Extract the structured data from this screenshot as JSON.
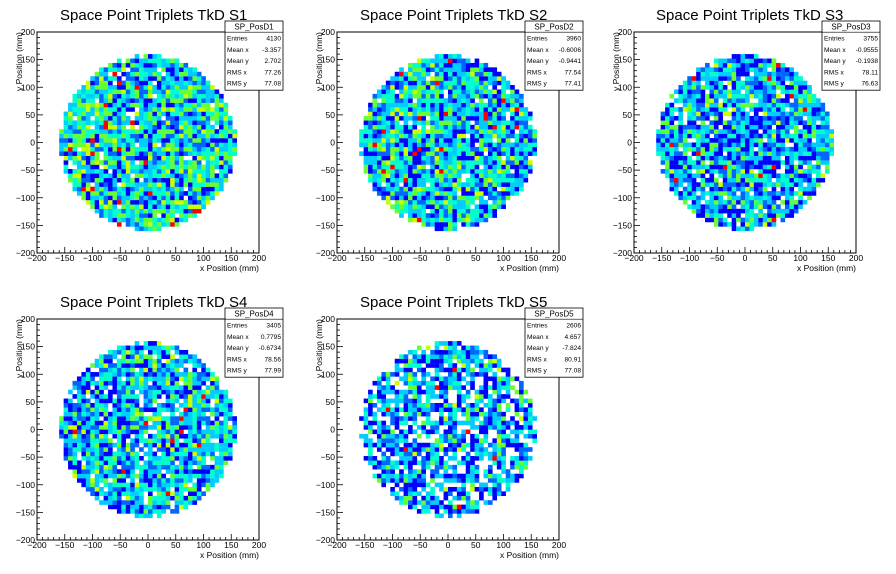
{
  "chart_data": [
    {
      "type": "heatmap",
      "title": "Space Point Triplets TkD S1",
      "xlabel": "x Position (mm)",
      "ylabel": "y Position (mm)",
      "xlim": [
        -200,
        200
      ],
      "ylim": [
        -200,
        200
      ],
      "xticks": [
        "−200",
        "−150",
        "−100",
        "−50",
        "0",
        "50",
        "100",
        "150",
        "200"
      ],
      "yticks": [
        "−200",
        "−150",
        "−100",
        "−50",
        "0",
        "50",
        "100",
        "150",
        "200"
      ],
      "bin_width": 8,
      "active_radius": 160,
      "palette": [
        "#0000ff",
        "#0066ff",
        "#00ccff",
        "#00ffcc",
        "#66ff33",
        "#ccff00",
        "#ff0000"
      ],
      "stats": {
        "name": "SP_PosD1",
        "rows": [
          {
            "label": "Entries",
            "value": "4130"
          },
          {
            "label": "Mean x",
            "value": "-3.357"
          },
          {
            "label": "Mean y",
            "value": "2.702"
          },
          {
            "label": "RMS x",
            "value": "77.26"
          },
          {
            "label": "RMS y",
            "value": "77.08"
          }
        ]
      },
      "density": 0.96,
      "weights": [
        14,
        12,
        22,
        24,
        18,
        8,
        2
      ]
    },
    {
      "type": "heatmap",
      "title": "Space Point Triplets TkD S2",
      "xlabel": "x Position (mm)",
      "ylabel": "y Position (mm)",
      "xlim": [
        -200,
        200
      ],
      "ylim": [
        -200,
        200
      ],
      "xticks": [
        "−200",
        "−150",
        "−100",
        "−50",
        "0",
        "50",
        "100",
        "150",
        "200"
      ],
      "yticks": [
        "−200",
        "−150",
        "−100",
        "−50",
        "0",
        "50",
        "100",
        "150",
        "200"
      ],
      "bin_width": 8,
      "active_radius": 160,
      "palette": [
        "#0000ff",
        "#0066ff",
        "#00ccff",
        "#00ffcc",
        "#66ff33",
        "#ccff00",
        "#ff0000"
      ],
      "stats": {
        "name": "SP_PosD2",
        "rows": [
          {
            "label": "Entries",
            "value": "3960"
          },
          {
            "label": "Mean x",
            "value": "-0.6006"
          },
          {
            "label": "Mean y",
            "value": "-0.9441"
          },
          {
            "label": "RMS x",
            "value": "77.54"
          },
          {
            "label": "RMS y",
            "value": "77.41"
          }
        ]
      },
      "density": 0.95,
      "weights": [
        18,
        14,
        24,
        22,
        14,
        6,
        2
      ]
    },
    {
      "type": "heatmap",
      "title": "Space Point Triplets TkD S3",
      "xlabel": "x Position (mm)",
      "ylabel": "y Position (mm)",
      "xlim": [
        -200,
        200
      ],
      "ylim": [
        -200,
        200
      ],
      "xticks": [
        "−200",
        "−150",
        "−100",
        "−50",
        "0",
        "50",
        "100",
        "150",
        "200"
      ],
      "yticks": [
        "−200",
        "−150",
        "−100",
        "−50",
        "0",
        "50",
        "100",
        "150",
        "200"
      ],
      "bin_width": 8,
      "active_radius": 160,
      "palette": [
        "#0000ff",
        "#0066ff",
        "#00ccff",
        "#00ffcc",
        "#66ff33",
        "#ccff00",
        "#ff0000"
      ],
      "stats": {
        "name": "SP_PosD3",
        "rows": [
          {
            "label": "Entries",
            "value": "3755"
          },
          {
            "label": "Mean x",
            "value": "-0.9555"
          },
          {
            "label": "Mean y",
            "value": "-0.1938"
          },
          {
            "label": "RMS x",
            "value": "78.11"
          },
          {
            "label": "RMS y",
            "value": "76.63"
          }
        ]
      },
      "density": 0.9,
      "weights": [
        24,
        18,
        26,
        18,
        10,
        3,
        1
      ]
    },
    {
      "type": "heatmap",
      "title": "Space Point Triplets TkD S4",
      "xlabel": "x Position (mm)",
      "ylabel": "y Position (mm)",
      "xlim": [
        -200,
        200
      ],
      "ylim": [
        -200,
        200
      ],
      "xticks": [
        "−200",
        "−150",
        "−100",
        "−50",
        "0",
        "50",
        "100",
        "150",
        "200"
      ],
      "yticks": [
        "−200",
        "−150",
        "−100",
        "−50",
        "0",
        "50",
        "100",
        "150",
        "200"
      ],
      "bin_width": 8,
      "active_radius": 160,
      "palette": [
        "#0000ff",
        "#0066ff",
        "#00ccff",
        "#00ffcc",
        "#66ff33",
        "#ccff00",
        "#ff0000"
      ],
      "stats": {
        "name": "SP_PosD4",
        "rows": [
          {
            "label": "Entries",
            "value": "3405"
          },
          {
            "label": "Mean x",
            "value": "0.7795"
          },
          {
            "label": "Mean y",
            "value": "-0.6734"
          },
          {
            "label": "RMS x",
            "value": "78.56"
          },
          {
            "label": "RMS y",
            "value": "77.99"
          }
        ]
      },
      "density": 0.9,
      "weights": [
        22,
        16,
        26,
        20,
        11,
        4,
        1
      ]
    },
    {
      "type": "heatmap",
      "title": "Space Point Triplets TkD S5",
      "xlabel": "x Position (mm)",
      "ylabel": "y Position (mm)",
      "xlim": [
        -200,
        200
      ],
      "ylim": [
        -200,
        200
      ],
      "xticks": [
        "−200",
        "−150",
        "−100",
        "−50",
        "0",
        "50",
        "100",
        "150",
        "200"
      ],
      "yticks": [
        "−200",
        "−150",
        "−100",
        "−50",
        "0",
        "50",
        "100",
        "150",
        "200"
      ],
      "bin_width": 8,
      "active_radius": 160,
      "palette": [
        "#0000ff",
        "#0066ff",
        "#00ccff",
        "#00ffcc",
        "#66ff33",
        "#ccff00",
        "#ff0000"
      ],
      "stats": {
        "name": "SP_PosD5",
        "rows": [
          {
            "label": "Entries",
            "value": "2606"
          },
          {
            "label": "Mean x",
            "value": "4.657"
          },
          {
            "label": "Mean y",
            "value": "-7.824"
          },
          {
            "label": "RMS x",
            "value": "80.91"
          },
          {
            "label": "RMS y",
            "value": "77.08"
          }
        ]
      },
      "density": 0.78,
      "weights": [
        28,
        16,
        26,
        14,
        7,
        2,
        0.5
      ]
    }
  ]
}
